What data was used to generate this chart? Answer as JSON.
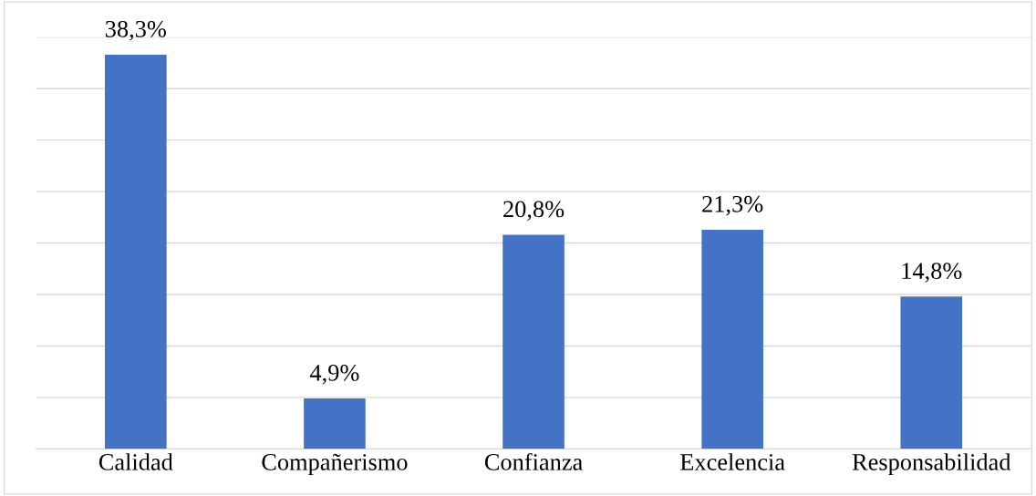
{
  "chart_data": {
    "type": "bar",
    "categories": [
      "Calidad",
      "Compañerismo",
      "Confianza",
      "Excelencia",
      "Responsabilidad"
    ],
    "values": [
      38.3,
      4.9,
      20.8,
      21.3,
      14.8
    ],
    "value_labels": [
      "38,3%",
      "4,9%",
      "20,8%",
      "21,3%",
      "14,8%"
    ],
    "color": "#4472c4",
    "ylim": [
      0,
      40
    ],
    "yticks": [
      {
        "value": 0,
        "label": null
      },
      {
        "value": 5,
        "label": null
      },
      {
        "value": 10,
        "label": null
      },
      {
        "value": 15,
        "label": null
      },
      {
        "value": 20,
        "label": null
      },
      {
        "value": 25,
        "label": null
      },
      {
        "value": 30,
        "label": null
      },
      {
        "value": 35,
        "label": null
      },
      {
        "value": 40,
        "label": null
      }
    ],
    "grid": "y",
    "tick_labels": "x"
  }
}
